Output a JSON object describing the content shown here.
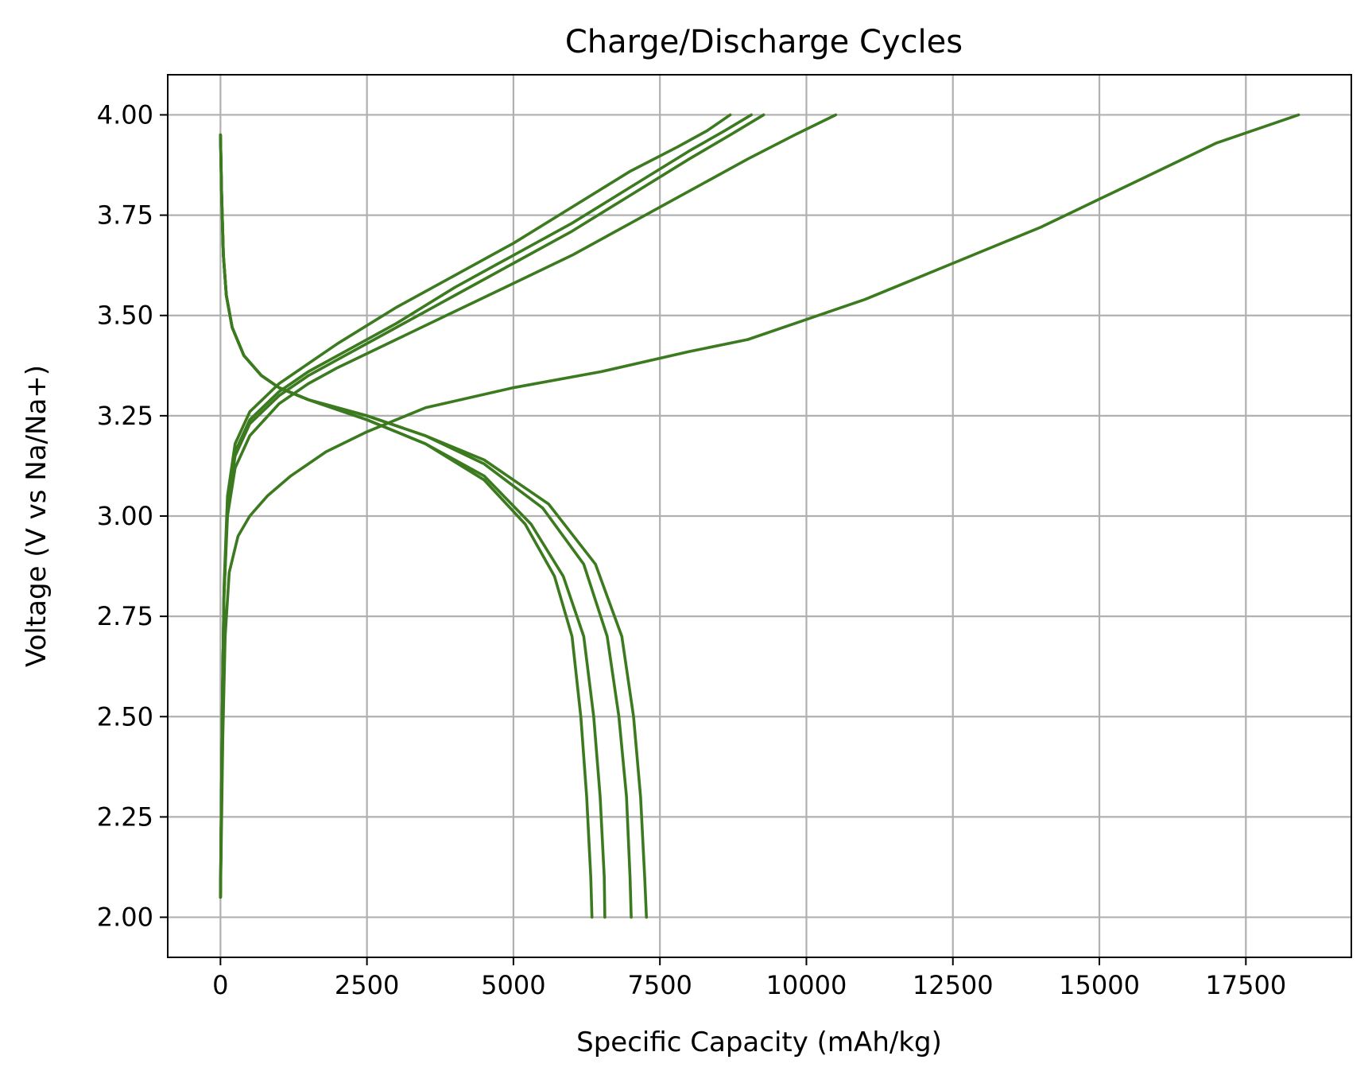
{
  "chart_data": {
    "type": "line",
    "title": "Charge/Discharge Cycles",
    "xlabel": "Specific Capacity (mAh/kg)",
    "ylabel": "Voltage (V vs Na/Na+)",
    "xlim": [
      -900,
      19300
    ],
    "ylim": [
      1.9,
      4.1
    ],
    "xticks": [
      0,
      2500,
      5000,
      7500,
      10000,
      12500,
      15000,
      17500
    ],
    "yticks": [
      2.0,
      2.25,
      2.5,
      2.75,
      3.0,
      3.25,
      3.5,
      3.75,
      4.0
    ],
    "xtick_labels": [
      "0",
      "2500",
      "5000",
      "7500",
      "10000",
      "12500",
      "15000",
      "17500"
    ],
    "ytick_labels": [
      "2.00",
      "2.25",
      "2.50",
      "2.75",
      "3.00",
      "3.25",
      "3.50",
      "3.75",
      "4.00"
    ],
    "grid": true,
    "line_color": "#3b7a1e",
    "series": [
      {
        "points": [
          [
            0,
            2.05
          ],
          [
            40,
            2.45
          ],
          [
            80,
            2.7
          ],
          [
            150,
            2.86
          ],
          [
            300,
            2.95
          ],
          [
            500,
            3.0
          ],
          [
            800,
            3.05
          ],
          [
            1200,
            3.1
          ],
          [
            1800,
            3.16
          ],
          [
            2500,
            3.21
          ],
          [
            3500,
            3.27
          ],
          [
            5000,
            3.32
          ],
          [
            6500,
            3.36
          ],
          [
            8000,
            3.41
          ],
          [
            9000,
            3.44
          ],
          [
            10000,
            3.49
          ],
          [
            11000,
            3.54
          ],
          [
            12500,
            3.63
          ],
          [
            14000,
            3.72
          ],
          [
            15000,
            3.79
          ],
          [
            16000,
            3.86
          ],
          [
            17000,
            3.93
          ],
          [
            18000,
            3.98
          ],
          [
            18400,
            4.0
          ]
        ]
      },
      {
        "points": [
          [
            0,
            2.05
          ],
          [
            30,
            2.5
          ],
          [
            60,
            2.8
          ],
          [
            120,
            3.0
          ],
          [
            250,
            3.12
          ],
          [
            500,
            3.2
          ],
          [
            1000,
            3.28
          ],
          [
            1500,
            3.33
          ],
          [
            2000,
            3.37
          ],
          [
            3000,
            3.44
          ],
          [
            4000,
            3.51
          ],
          [
            5000,
            3.58
          ],
          [
            6000,
            3.65
          ],
          [
            7000,
            3.73
          ],
          [
            8000,
            3.81
          ],
          [
            9000,
            3.89
          ],
          [
            9800,
            3.95
          ],
          [
            10500,
            4.0
          ]
        ]
      },
      {
        "points": [
          [
            0,
            2.05
          ],
          [
            30,
            2.5
          ],
          [
            60,
            2.8
          ],
          [
            120,
            3.02
          ],
          [
            250,
            3.15
          ],
          [
            500,
            3.23
          ],
          [
            1000,
            3.3
          ],
          [
            1500,
            3.35
          ],
          [
            2000,
            3.39
          ],
          [
            3000,
            3.47
          ],
          [
            4000,
            3.55
          ],
          [
            5000,
            3.63
          ],
          [
            6000,
            3.71
          ],
          [
            7000,
            3.8
          ],
          [
            8000,
            3.89
          ],
          [
            8700,
            3.95
          ],
          [
            9270,
            4.0
          ]
        ]
      },
      {
        "points": [
          [
            0,
            2.05
          ],
          [
            30,
            2.5
          ],
          [
            60,
            2.8
          ],
          [
            120,
            3.03
          ],
          [
            250,
            3.16
          ],
          [
            500,
            3.24
          ],
          [
            1000,
            3.31
          ],
          [
            1500,
            3.36
          ],
          [
            2000,
            3.4
          ],
          [
            3000,
            3.48
          ],
          [
            4000,
            3.57
          ],
          [
            5000,
            3.65
          ],
          [
            6000,
            3.73
          ],
          [
            7000,
            3.82
          ],
          [
            8000,
            3.91
          ],
          [
            8600,
            3.96
          ],
          [
            9060,
            4.0
          ]
        ]
      },
      {
        "points": [
          [
            0,
            2.05
          ],
          [
            30,
            2.5
          ],
          [
            60,
            2.82
          ],
          [
            120,
            3.05
          ],
          [
            250,
            3.18
          ],
          [
            500,
            3.26
          ],
          [
            1000,
            3.33
          ],
          [
            1500,
            3.38
          ],
          [
            2000,
            3.43
          ],
          [
            3000,
            3.52
          ],
          [
            4000,
            3.6
          ],
          [
            5000,
            3.68
          ],
          [
            6000,
            3.77
          ],
          [
            7000,
            3.86
          ],
          [
            7800,
            3.92
          ],
          [
            8300,
            3.96
          ],
          [
            8700,
            4.0
          ]
        ]
      },
      {
        "points": [
          [
            0,
            3.95
          ],
          [
            20,
            3.8
          ],
          [
            50,
            3.65
          ],
          [
            100,
            3.55
          ],
          [
            200,
            3.47
          ],
          [
            400,
            3.4
          ],
          [
            700,
            3.35
          ],
          [
            1000,
            3.32
          ],
          [
            1500,
            3.29
          ],
          [
            2500,
            3.24
          ],
          [
            3500,
            3.18
          ],
          [
            4500,
            3.09
          ],
          [
            5200,
            2.98
          ],
          [
            5700,
            2.85
          ],
          [
            6000,
            2.7
          ],
          [
            6150,
            2.5
          ],
          [
            6250,
            2.3
          ],
          [
            6320,
            2.1
          ],
          [
            6340,
            2.0
          ]
        ]
      },
      {
        "points": [
          [
            0,
            3.95
          ],
          [
            20,
            3.8
          ],
          [
            50,
            3.65
          ],
          [
            100,
            3.55
          ],
          [
            200,
            3.47
          ],
          [
            400,
            3.4
          ],
          [
            700,
            3.35
          ],
          [
            1000,
            3.32
          ],
          [
            1500,
            3.29
          ],
          [
            2500,
            3.24
          ],
          [
            3500,
            3.18
          ],
          [
            4500,
            3.1
          ],
          [
            5300,
            2.98
          ],
          [
            5850,
            2.85
          ],
          [
            6200,
            2.7
          ],
          [
            6370,
            2.5
          ],
          [
            6480,
            2.3
          ],
          [
            6550,
            2.1
          ],
          [
            6560,
            2.0
          ]
        ]
      },
      {
        "points": [
          [
            0,
            3.95
          ],
          [
            20,
            3.8
          ],
          [
            50,
            3.65
          ],
          [
            100,
            3.55
          ],
          [
            200,
            3.47
          ],
          [
            400,
            3.4
          ],
          [
            700,
            3.35
          ],
          [
            1000,
            3.32
          ],
          [
            1500,
            3.29
          ],
          [
            2500,
            3.25
          ],
          [
            3500,
            3.2
          ],
          [
            4500,
            3.13
          ],
          [
            5500,
            3.02
          ],
          [
            6200,
            2.88
          ],
          [
            6600,
            2.7
          ],
          [
            6800,
            2.5
          ],
          [
            6930,
            2.3
          ],
          [
            6990,
            2.1
          ],
          [
            7010,
            2.0
          ]
        ]
      },
      {
        "points": [
          [
            0,
            3.95
          ],
          [
            20,
            3.8
          ],
          [
            50,
            3.65
          ],
          [
            100,
            3.55
          ],
          [
            200,
            3.47
          ],
          [
            400,
            3.4
          ],
          [
            700,
            3.35
          ],
          [
            1000,
            3.32
          ],
          [
            1500,
            3.29
          ],
          [
            2500,
            3.25
          ],
          [
            3500,
            3.2
          ],
          [
            4500,
            3.14
          ],
          [
            5600,
            3.03
          ],
          [
            6400,
            2.88
          ],
          [
            6850,
            2.7
          ],
          [
            7050,
            2.5
          ],
          [
            7170,
            2.3
          ],
          [
            7240,
            2.1
          ],
          [
            7270,
            2.0
          ]
        ]
      }
    ]
  }
}
